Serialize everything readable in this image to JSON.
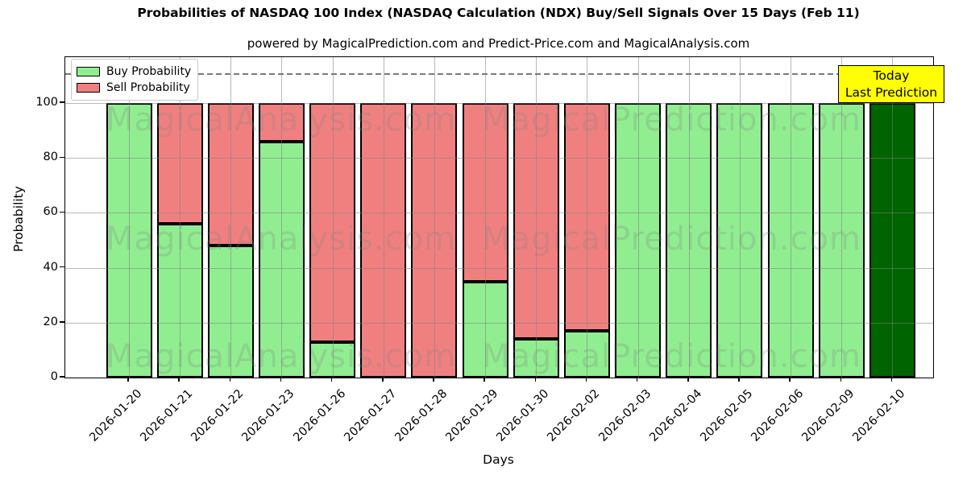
{
  "title": "Probabilities of NASDAQ 100 Index (NASDAQ Calculation (NDX) Buy/Sell Signals Over 15 Days (Feb 11)",
  "subtitle": "powered by MagicalPrediction.com and Predict-Price.com and MagicalAnalysis.com",
  "legend": {
    "items": [
      {
        "label": "Buy Probability",
        "color": "#90ee90"
      },
      {
        "label": "Sell Probability",
        "color": "#f08080"
      }
    ]
  },
  "annotation": {
    "line1": "Today",
    "line2": "Last Prediction",
    "bg_color": "#ffff00"
  },
  "watermarks": {
    "left_text": "MagicalAnalysis.com",
    "right_text": "MagicalPrediction.com"
  },
  "axes": {
    "xlabel": "Days",
    "ylabel": "Probability",
    "yticks": [
      0,
      20,
      40,
      60,
      80,
      100
    ]
  },
  "chart_data": {
    "type": "bar",
    "stacked": true,
    "categories": [
      "2026-01-20",
      "2026-01-21",
      "2026-01-22",
      "2026-01-23",
      "2026-01-26",
      "2026-01-27",
      "2026-01-28",
      "2026-01-29",
      "2026-01-30",
      "2026-02-02",
      "2026-02-03",
      "2026-02-04",
      "2026-02-05",
      "2026-02-06",
      "2026-02-09",
      "2026-02-10"
    ],
    "series": [
      {
        "name": "Buy Probability",
        "color": "#90ee90",
        "values": [
          100,
          56,
          48,
          86,
          13,
          0,
          0,
          35,
          14,
          17,
          100,
          100,
          100,
          100,
          100,
          100
        ]
      },
      {
        "name": "Sell Probability",
        "color": "#f08080",
        "values": [
          0,
          44,
          52,
          14,
          87,
          100,
          100,
          65,
          86,
          83,
          0,
          0,
          0,
          0,
          0,
          0
        ]
      }
    ],
    "highlight_last_bar_color": "#006400",
    "bar_edge_color": "#000000",
    "title": "Probabilities of NASDAQ 100 Index (NASDAQ Calculation (NDX) Buy/Sell Signals Over 15 Days (Feb 11)",
    "xlabel": "Days",
    "ylabel": "Probability",
    "ylim": [
      0,
      116.7
    ],
    "dashed_threshold_y": 110.8,
    "grid": true,
    "legend_position": "upper left"
  }
}
